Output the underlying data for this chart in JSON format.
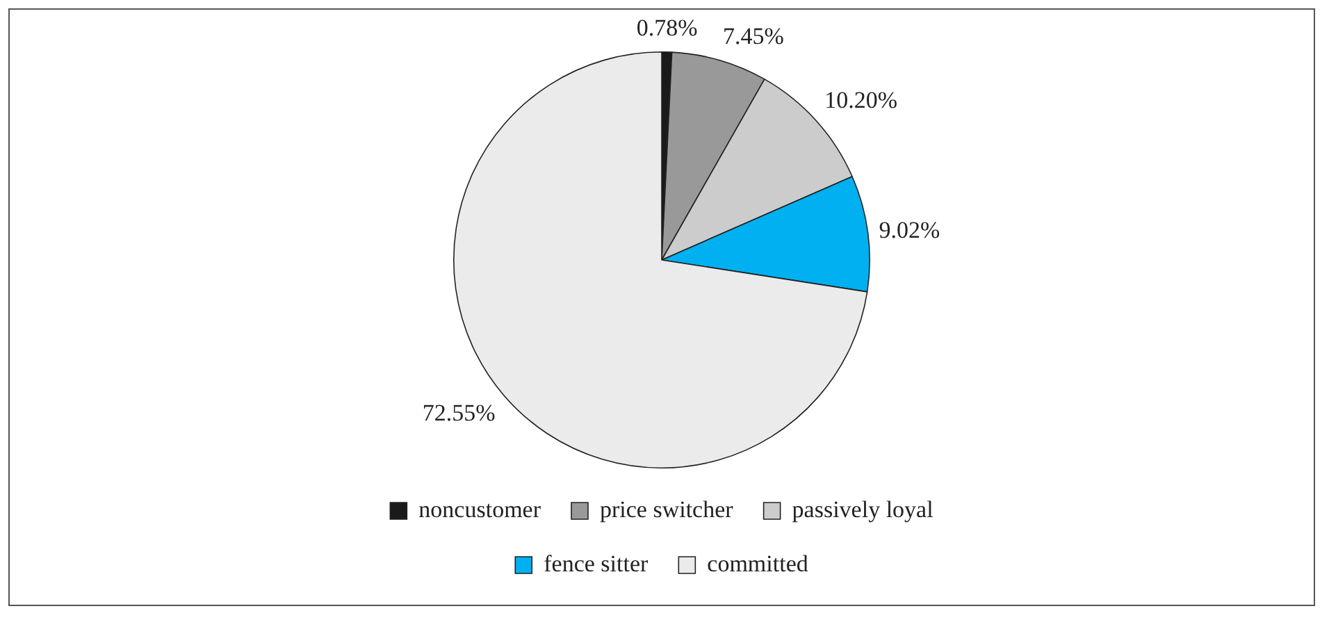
{
  "chart_data": {
    "type": "pie",
    "categories": [
      "noncustomer",
      "price switcher",
      "passively loyal",
      "fence sitter",
      "committed"
    ],
    "values": [
      0.78,
      7.45,
      10.2,
      9.02,
      72.55
    ],
    "value_labels": [
      "0.78%",
      "7.45%",
      "10.20%",
      "9.02%",
      "72.55%"
    ],
    "colors": [
      "#1a1a1a",
      "#999999",
      "#cccccc",
      "#00b0f0",
      "#ebebeb"
    ],
    "legend": "bottom"
  }
}
